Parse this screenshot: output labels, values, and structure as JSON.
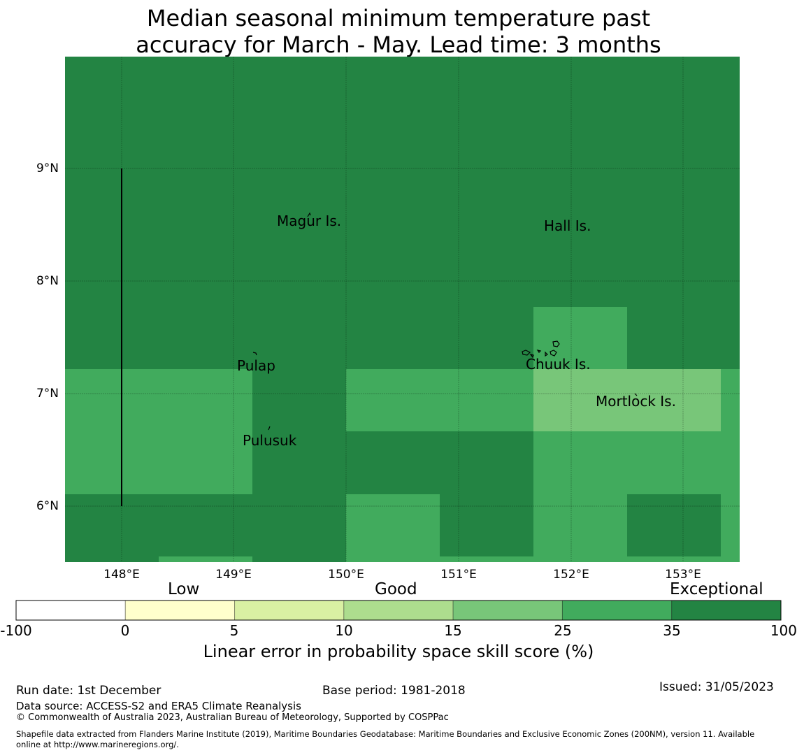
{
  "title_line1": "Median seasonal minimum temperature past",
  "title_line2": "accuracy for March - May. Lead time: 3 months",
  "map": {
    "latitude_labels": [
      "9°N",
      "8°N",
      "7°N",
      "6°N"
    ],
    "longitude_labels": [
      "148°E",
      "149°E",
      "150°E",
      "151°E",
      "152°E",
      "153°E"
    ],
    "places": [
      {
        "name": "Magur Is."
      },
      {
        "name": "Hall Is."
      },
      {
        "name": "Pulap"
      },
      {
        "name": "Chuuk Is."
      },
      {
        "name": "Mortlock Is."
      },
      {
        "name": "Pulusuk"
      }
    ],
    "colors": {
      "exceptional": "#238443",
      "very_good": "#41ab5d",
      "good": "#78c679"
    }
  },
  "colorbar": {
    "categories": [
      "Low",
      "Good",
      "Exceptional"
    ],
    "ticks": [
      "-100",
      "0",
      "5",
      "10",
      "15",
      "25",
      "35",
      "100"
    ],
    "colors": [
      "#ffffff",
      "#ffffcc",
      "#d9f0a3",
      "#addd8e",
      "#78c679",
      "#41ab5d",
      "#238443"
    ],
    "label": "Linear error in probability space skill score (%)"
  },
  "footer": {
    "run_date": "Run date: 1st December",
    "base_period": "Base period: 1981-2018",
    "issued": "Issued: 31/05/2023",
    "data_source": "Data source: ACCESS-S2 and ERA5 Climate Reanalysis",
    "copyright": "© Commonwealth of Australia 2023, Australian Bureau of Meteorology, Supported by COSPPac",
    "shapefile_line1": "Shapefile data extracted from Flanders Marine Institute (2019), Maritime Boundaries Geodatabase: Maritime Boundaries and Exclusive Economic Zones (200NM), version 11. Available",
    "shapefile_line2": "online at http://www.marineregions.org/."
  }
}
